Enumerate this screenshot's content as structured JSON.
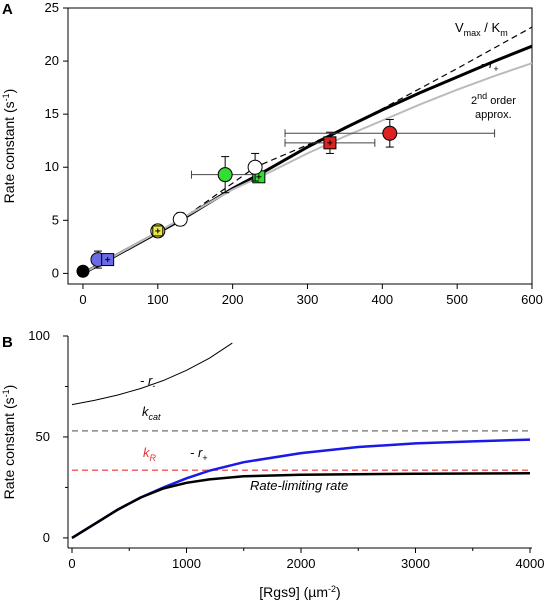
{
  "chart_data": [
    {
      "panel": "A",
      "type": "line",
      "ylabel_main": "Rate constant (s",
      "ylabel_sup": "-1",
      "ylabel_close": ")",
      "xlim": [
        -20,
        600
      ],
      "ylim": [
        -1,
        25
      ],
      "xticks": [
        0,
        100,
        200,
        300,
        400,
        500,
        600
      ],
      "yticks": [
        0,
        5,
        10,
        15,
        20,
        25
      ],
      "lines": [
        {
          "name": "Vmax/Km",
          "color": "#000000",
          "dash": "6,4",
          "width": 1.2,
          "points": [
            [
              0,
              0
            ],
            [
              130,
              5.0
            ],
            [
              230,
              10.0
            ],
            [
              330,
              13.0
            ],
            [
              400,
              15.5
            ],
            [
              500,
              19.3
            ],
            [
              600,
              23.2
            ]
          ]
        },
        {
          "name": "-r+",
          "color": "#000000",
          "dash": "",
          "width": 3,
          "points": [
            [
              0,
              0
            ],
            [
              60,
              2.3
            ],
            [
              130,
              5.0
            ],
            [
              200,
              8.0
            ],
            [
              240,
              9.5
            ],
            [
              300,
              11.9
            ],
            [
              350,
              13.7
            ],
            [
              400,
              15.4
            ],
            [
              450,
              17.0
            ],
            [
              500,
              18.5
            ],
            [
              550,
              20.0
            ],
            [
              600,
              21.4
            ]
          ]
        },
        {
          "name": "2nd order approx.",
          "color": "#bbbbbb",
          "dash": "",
          "width": 2,
          "points": [
            [
              0,
              0
            ],
            [
              100,
              3.9
            ],
            [
              200,
              7.9
            ],
            [
              240,
              9.2
            ],
            [
              300,
              11.3
            ],
            [
              350,
              12.9
            ],
            [
              400,
              14.4
            ],
            [
              450,
              15.9
            ],
            [
              500,
              17.3
            ],
            [
              550,
              18.6
            ],
            [
              600,
              19.8
            ]
          ]
        }
      ],
      "points": [
        {
          "x": 0,
          "y": 0.2,
          "color": "#000000",
          "shape": "circle",
          "xerr": 0,
          "yerr": 0,
          "r": 6
        },
        {
          "x": 20,
          "y": 1.3,
          "color": "#6a6ae6",
          "shape": "circle",
          "xerr": 0,
          "yerr": 0.8,
          "r": 7
        },
        {
          "x": 33,
          "y": 1.3,
          "color": "#6a6ae6",
          "shape": "square",
          "xerr": 0,
          "yerr": 0,
          "r": 6
        },
        {
          "x": 100,
          "y": 4.0,
          "color": "#e9e94a",
          "shape": "circle",
          "xerr": 0,
          "yerr": 0.5,
          "r": 7
        },
        {
          "x": 100,
          "y": 4.0,
          "color": "#e9e94a",
          "shape": "square",
          "xerr": 0,
          "yerr": 0,
          "r": 5
        },
        {
          "x": 130,
          "y": 5.1,
          "color": "#ffffff",
          "shape": "circle",
          "xerr": 0,
          "yerr": 0.6,
          "r": 7
        },
        {
          "x": 190,
          "y": 9.3,
          "color": "#33dd33",
          "shape": "circle",
          "xerr": 45,
          "yerr": 1.7,
          "r": 7
        },
        {
          "x": 235,
          "y": 9.1,
          "color": "#33dd33",
          "shape": "square",
          "xerr": 0,
          "yerr": 0,
          "r": 6
        },
        {
          "x": 230,
          "y": 10.0,
          "color": "#ffffff",
          "shape": "circle",
          "xerr": 0,
          "yerr": 1.3,
          "r": 7
        },
        {
          "x": 330,
          "y": 12.3,
          "color": "#dd2222",
          "shape": "square",
          "xerr": 60,
          "yerr": 1.0,
          "r": 6
        },
        {
          "x": 410,
          "y": 13.2,
          "color": "#dd2222",
          "shape": "circle",
          "xerr": 140,
          "yerr": 1.3,
          "r": 7
        }
      ],
      "annotations": {
        "vmax_km": {
          "pre": "V",
          "sub1": "max",
          "mid": " / K",
          "sub2": "m"
        },
        "r_plus": {
          "pre": "- r",
          "sub": "+"
        },
        "second_order_1": {
          "pre": "2",
          "sup": "nd",
          "post": " order"
        },
        "second_order_2": "approx."
      }
    },
    {
      "panel": "B",
      "type": "line",
      "xlabel": "[Rgs9] (µm",
      "xlabel_sup": "-2",
      "xlabel_close": ")",
      "ylabel_main": "Rate constant (s",
      "ylabel_sup": "-1",
      "ylabel_close": ")",
      "xlim": [
        0,
        4000
      ],
      "ylim": [
        -5,
        100
      ],
      "xticks": [
        0,
        1000,
        2000,
        3000,
        4000
      ],
      "yticks": [
        0,
        50,
        100
      ],
      "lines": [
        {
          "name": "-r-",
          "color": "#000000",
          "dash": "",
          "width": 1,
          "points": [
            [
              0,
              66
            ],
            [
              200,
              68.2
            ],
            [
              400,
              70.8
            ],
            [
              600,
              74.0
            ],
            [
              800,
              78.0
            ],
            [
              1000,
              83.0
            ],
            [
              1200,
              89.0
            ],
            [
              1400,
              96.5
            ]
          ]
        },
        {
          "name": "kcat",
          "color": "#888888",
          "dash": "6,4",
          "width": 1.5,
          "points": [
            [
              0,
              53
            ],
            [
              4000,
              53
            ]
          ]
        },
        {
          "name": "kR",
          "color": "#ee6666",
          "dash": "6,4",
          "width": 1.5,
          "points": [
            [
              0,
              33.5
            ],
            [
              4000,
              33.5
            ]
          ]
        },
        {
          "name": "-r+",
          "color": "#1a1ae6",
          "dash": "",
          "width": 2.5,
          "points": [
            [
              0,
              0
            ],
            [
              200,
              7.0
            ],
            [
              400,
              14.0
            ],
            [
              600,
              20.0
            ],
            [
              800,
              25.0
            ],
            [
              1000,
              29.5
            ],
            [
              1200,
              33.3
            ],
            [
              1500,
              37.5
            ],
            [
              2000,
              42.0
            ],
            [
              2500,
              45.0
            ],
            [
              3000,
              46.8
            ],
            [
              3500,
              47.8
            ],
            [
              4000,
              48.7
            ]
          ]
        },
        {
          "name": "Rate-limiting rate",
          "color": "#000000",
          "dash": "",
          "width": 2.5,
          "points": [
            [
              0,
              0
            ],
            [
              200,
              7.0
            ],
            [
              400,
              14.0
            ],
            [
              600,
              20.0
            ],
            [
              800,
              24.5
            ],
            [
              1000,
              27.3
            ],
            [
              1200,
              29.0
            ],
            [
              1500,
              30.5
            ],
            [
              2000,
              31.3
            ],
            [
              3000,
              31.8
            ],
            [
              4000,
              32.0
            ]
          ]
        }
      ],
      "annotations": {
        "r_minus": {
          "pre": "- r",
          "sub": "-"
        },
        "kcat": {
          "pre": "k",
          "sub": "cat"
        },
        "kr": {
          "pre": "k",
          "sub": "R"
        },
        "r_plus": {
          "pre": "- r",
          "sub": "+"
        },
        "rate_limiting": "Rate-limiting rate"
      }
    }
  ]
}
